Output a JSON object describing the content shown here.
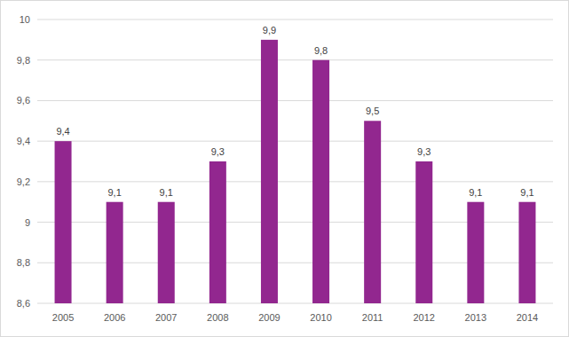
{
  "chart_data": {
    "type": "bar",
    "categories": [
      "2005",
      "2006",
      "2007",
      "2008",
      "2009",
      "2010",
      "2011",
      "2012",
      "2013",
      "2014"
    ],
    "values": [
      9.4,
      9.1,
      9.1,
      9.3,
      9.9,
      9.8,
      9.5,
      9.3,
      9.1,
      9.1
    ],
    "value_labels": [
      "9,4",
      "9,1",
      "9,1",
      "9,3",
      "9,9",
      "9,8",
      "9,5",
      "9,3",
      "9,1",
      "9,1"
    ],
    "color": "#92278f",
    "ylim": [
      8.6,
      10
    ],
    "yticks": [
      {
        "value": 8.6,
        "label": "8,6"
      },
      {
        "value": 8.8,
        "label": "8,8"
      },
      9,
      {
        "value": 9.2,
        "label": "9,2"
      },
      {
        "value": 9.4,
        "label": "9,4"
      },
      {
        "value": 9.6,
        "label": "9,6"
      },
      {
        "value": 9.8,
        "label": "9,8"
      },
      10
    ],
    "grid": true,
    "data_labels": true
  }
}
